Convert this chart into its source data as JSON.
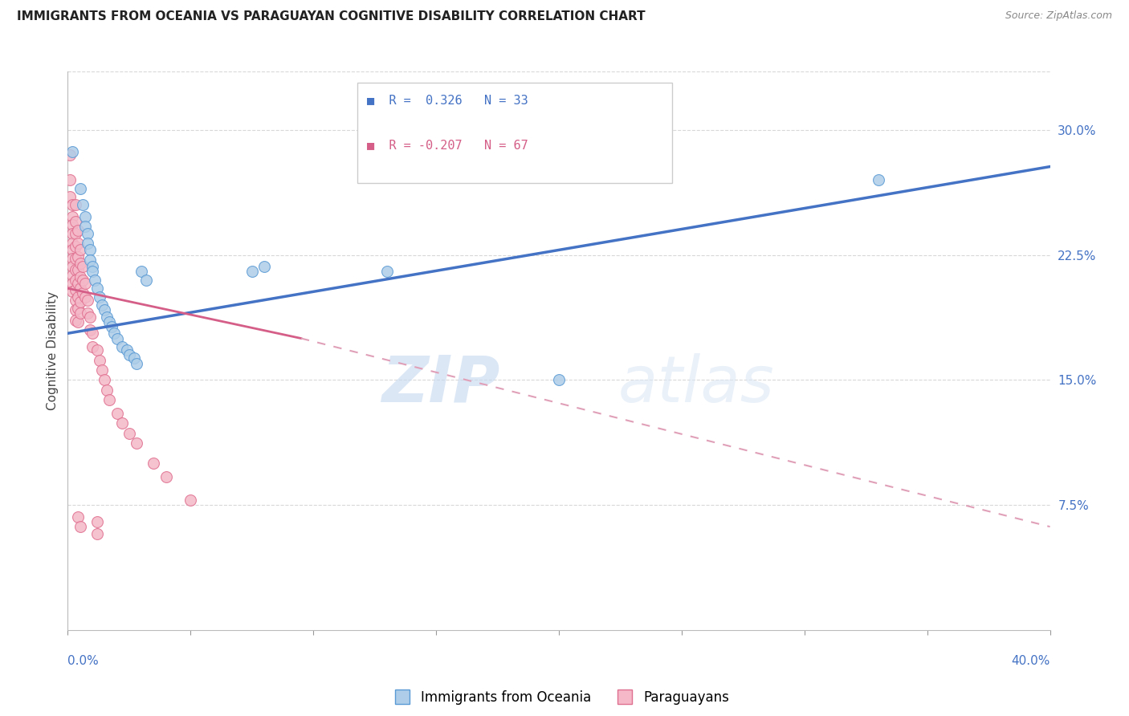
{
  "title": "IMMIGRANTS FROM OCEANIA VS PARAGUAYAN COGNITIVE DISABILITY CORRELATION CHART",
  "source": "Source: ZipAtlas.com",
  "ylabel": "Cognitive Disability",
  "right_yticks": [
    0.075,
    0.15,
    0.225,
    0.3
  ],
  "right_ytick_labels": [
    "7.5%",
    "15.0%",
    "22.5%",
    "30.0%"
  ],
  "legend_blue_r": "R =  0.326",
  "legend_blue_n": "N = 33",
  "legend_pink_r": "R = -0.207",
  "legend_pink_n": "N = 67",
  "legend_label_blue": "Immigrants from Oceania",
  "legend_label_pink": "Paraguayans",
  "xlim": [
    0.0,
    0.4
  ],
  "ylim": [
    0.0,
    0.335
  ],
  "blue_color": "#aecde8",
  "pink_color": "#f4b8c8",
  "blue_edge_color": "#5b9bd5",
  "pink_edge_color": "#e07090",
  "blue_line_color": "#4472c4",
  "pink_line_color": "#d45e87",
  "pink_dash_color": "#e0a0b8",
  "blue_scatter": [
    [
      0.002,
      0.287
    ],
    [
      0.005,
      0.265
    ],
    [
      0.006,
      0.255
    ],
    [
      0.007,
      0.248
    ],
    [
      0.007,
      0.242
    ],
    [
      0.008,
      0.238
    ],
    [
      0.008,
      0.232
    ],
    [
      0.009,
      0.228
    ],
    [
      0.009,
      0.222
    ],
    [
      0.01,
      0.218
    ],
    [
      0.01,
      0.215
    ],
    [
      0.011,
      0.21
    ],
    [
      0.012,
      0.205
    ],
    [
      0.013,
      0.2
    ],
    [
      0.014,
      0.195
    ],
    [
      0.015,
      0.192
    ],
    [
      0.016,
      0.188
    ],
    [
      0.017,
      0.185
    ],
    [
      0.018,
      0.182
    ],
    [
      0.019,
      0.178
    ],
    [
      0.02,
      0.175
    ],
    [
      0.022,
      0.17
    ],
    [
      0.024,
      0.168
    ],
    [
      0.025,
      0.165
    ],
    [
      0.027,
      0.163
    ],
    [
      0.028,
      0.16
    ],
    [
      0.03,
      0.215
    ],
    [
      0.032,
      0.21
    ],
    [
      0.075,
      0.215
    ],
    [
      0.08,
      0.218
    ],
    [
      0.13,
      0.215
    ],
    [
      0.2,
      0.15
    ],
    [
      0.33,
      0.27
    ]
  ],
  "pink_scatter": [
    [
      0.001,
      0.285
    ],
    [
      0.001,
      0.27
    ],
    [
      0.001,
      0.26
    ],
    [
      0.002,
      0.255
    ],
    [
      0.002,
      0.248
    ],
    [
      0.002,
      0.243
    ],
    [
      0.002,
      0.238
    ],
    [
      0.002,
      0.232
    ],
    [
      0.002,
      0.228
    ],
    [
      0.002,
      0.223
    ],
    [
      0.002,
      0.218
    ],
    [
      0.002,
      0.213
    ],
    [
      0.002,
      0.208
    ],
    [
      0.002,
      0.203
    ],
    [
      0.003,
      0.255
    ],
    [
      0.003,
      0.245
    ],
    [
      0.003,
      0.238
    ],
    [
      0.003,
      0.23
    ],
    [
      0.003,
      0.223
    ],
    [
      0.003,
      0.216
    ],
    [
      0.003,
      0.21
    ],
    [
      0.003,
      0.204
    ],
    [
      0.003,
      0.198
    ],
    [
      0.003,
      0.192
    ],
    [
      0.003,
      0.186
    ],
    [
      0.004,
      0.24
    ],
    [
      0.004,
      0.232
    ],
    [
      0.004,
      0.224
    ],
    [
      0.004,
      0.216
    ],
    [
      0.004,
      0.208
    ],
    [
      0.004,
      0.2
    ],
    [
      0.004,
      0.193
    ],
    [
      0.004,
      0.185
    ],
    [
      0.005,
      0.228
    ],
    [
      0.005,
      0.22
    ],
    [
      0.005,
      0.212
    ],
    [
      0.005,
      0.205
    ],
    [
      0.005,
      0.197
    ],
    [
      0.005,
      0.19
    ],
    [
      0.006,
      0.218
    ],
    [
      0.006,
      0.21
    ],
    [
      0.006,
      0.202
    ],
    [
      0.007,
      0.208
    ],
    [
      0.007,
      0.2
    ],
    [
      0.008,
      0.198
    ],
    [
      0.008,
      0.19
    ],
    [
      0.009,
      0.188
    ],
    [
      0.009,
      0.18
    ],
    [
      0.01,
      0.178
    ],
    [
      0.01,
      0.17
    ],
    [
      0.012,
      0.168
    ],
    [
      0.013,
      0.162
    ],
    [
      0.014,
      0.156
    ],
    [
      0.015,
      0.15
    ],
    [
      0.016,
      0.144
    ],
    [
      0.017,
      0.138
    ],
    [
      0.02,
      0.13
    ],
    [
      0.022,
      0.124
    ],
    [
      0.025,
      0.118
    ],
    [
      0.028,
      0.112
    ],
    [
      0.035,
      0.1
    ],
    [
      0.04,
      0.092
    ],
    [
      0.004,
      0.068
    ],
    [
      0.005,
      0.062
    ],
    [
      0.012,
      0.065
    ],
    [
      0.012,
      0.058
    ],
    [
      0.05,
      0.078
    ]
  ],
  "blue_trendline": [
    [
      0.0,
      0.178
    ],
    [
      0.4,
      0.278
    ]
  ],
  "pink_trendline_solid": [
    [
      0.0,
      0.205
    ],
    [
      0.095,
      0.175
    ]
  ],
  "pink_trendline_dashed": [
    [
      0.095,
      0.175
    ],
    [
      0.4,
      0.062
    ]
  ],
  "watermark_zip": "ZIP",
  "watermark_atlas": "atlas",
  "background_color": "#ffffff",
  "grid_color": "#d8d8d8"
}
